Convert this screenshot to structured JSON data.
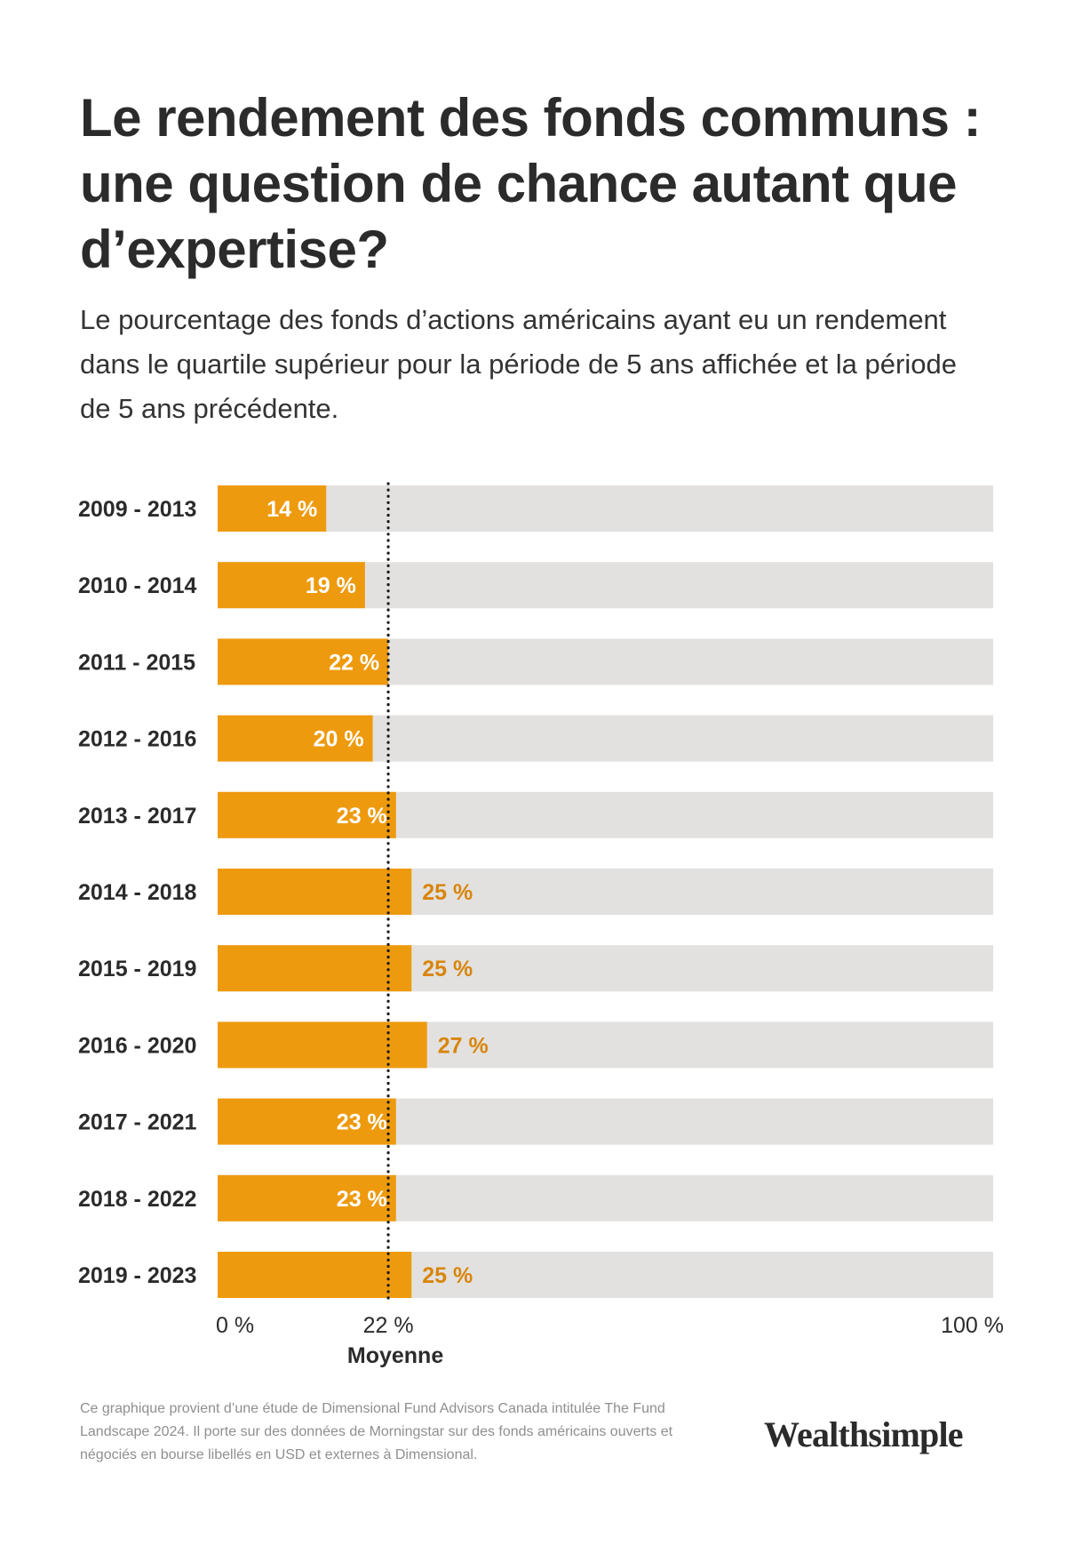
{
  "title": "Le rendement des fonds communs : une question de chance autant que d’expertise?",
  "subtitle": "Le pourcentage des fonds d’actions américains ayant eu un rendement dans le quartile supérieur pour la période de 5 ans affichée et la période de 5 ans précédente.",
  "footnote": "Ce graphique provient d’une étude de Dimensional Fund Advisors Canada intitulée The Fund Landscape 2024. Il porte sur des données de Morningstar sur des fonds américains ouverts et négociés en bourse libellés en USD et externes à Dimensional.",
  "brand": "Wealthsimple",
  "colors": {
    "bar": "#EE9A0E",
    "track": "#E3E1DF",
    "label_inside": "#ffffff",
    "label_outside": "#D8850C",
    "text": "#2b2b2b"
  },
  "chart_data": {
    "type": "bar",
    "orientation": "horizontal",
    "categories": [
      "2009 - 2013",
      "2010 - 2014",
      "2011 - 2015",
      "2012 - 2016",
      "2013 - 2017",
      "2014 - 2018",
      "2015 - 2019",
      "2016 - 2020",
      "2017 - 2021",
      "2018 - 2022",
      "2019 - 2023"
    ],
    "values": [
      14,
      19,
      22,
      20,
      23,
      25,
      25,
      27,
      23,
      23,
      25
    ],
    "value_labels": [
      "14 %",
      "19 %",
      "22 %",
      "20 %",
      "23 %",
      "25 %",
      "25 %",
      "27 %",
      "23 %",
      "23 %",
      "25 %"
    ],
    "xlim": [
      0,
      100
    ],
    "x_ticks": [
      {
        "value": 0,
        "label": "0 %"
      },
      {
        "value": 22,
        "label": "22 %"
      },
      {
        "value": 100,
        "label": "100 %"
      }
    ],
    "reference_line": {
      "value": 22,
      "label": "Moyenne",
      "style": "dotted"
    },
    "grid": false
  }
}
